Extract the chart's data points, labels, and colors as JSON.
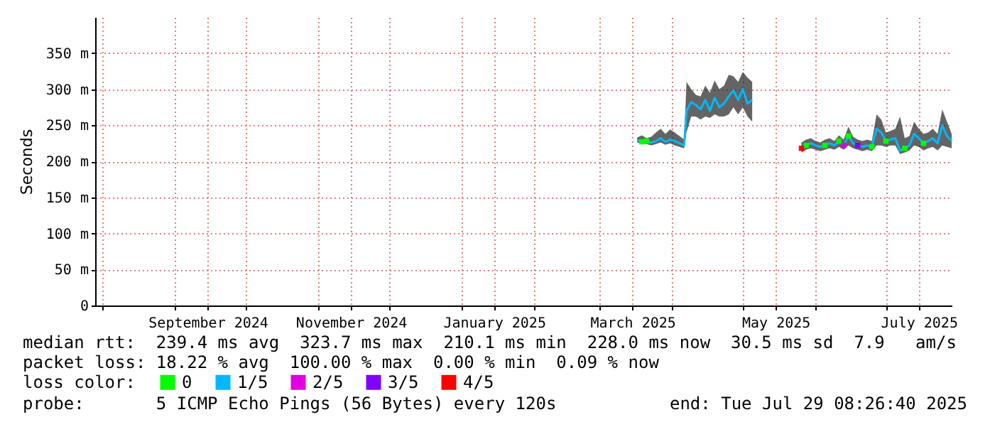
{
  "chart_data": {
    "type": "line",
    "ylabel": "Seconds",
    "legend_title": "loss color:",
    "legend": "bottom",
    "grid": true,
    "xlim": [
      "2024-07-29",
      "2025-07-29"
    ],
    "xticks": [
      {
        "value": "2024-08-01",
        "label": null
      },
      {
        "value": "2024-09-01",
        "label": null
      },
      {
        "value": "2024-09-15",
        "label": "September 2024"
      },
      {
        "value": "2024-10-01",
        "label": null
      },
      {
        "value": "2024-11-01",
        "label": null
      },
      {
        "value": "2024-11-15",
        "label": "November 2024"
      },
      {
        "value": "2024-12-01",
        "label": null
      },
      {
        "value": "2025-01-01",
        "label": null
      },
      {
        "value": "2025-01-15",
        "label": "January 2025"
      },
      {
        "value": "2025-02-01",
        "label": null
      },
      {
        "value": "2025-03-01",
        "label": null
      },
      {
        "value": "2025-03-15",
        "label": "March 2025"
      },
      {
        "value": "2025-04-01",
        "label": null
      },
      {
        "value": "2025-05-01",
        "label": null
      },
      {
        "value": "2025-05-15",
        "label": "May 2025"
      },
      {
        "value": "2025-06-01",
        "label": null
      },
      {
        "value": "2025-07-01",
        "label": null
      },
      {
        "value": "2025-07-15",
        "label": "July 2025"
      }
    ],
    "ylim": [
      0,
      400
    ],
    "yticks": [
      0,
      {
        "value": 50,
        "label": "50 m"
      },
      {
        "value": 100,
        "label": "100 m"
      },
      {
        "value": 150,
        "label": "150 m"
      },
      {
        "value": 200,
        "label": "200 m"
      },
      {
        "value": 250,
        "label": "250 m"
      },
      {
        "value": 300,
        "label": "300 m"
      },
      {
        "value": 350,
        "label": "350 m"
      }
    ],
    "annotations": [
      "median rtt:  239.4 ms avg  323.7 ms max  210.1 ms min  228.0 ms now  30.5 ms sd  7.9   am/s",
      "packet loss: 18.22 % avg  100.00 % max  0.00 % min  0.09 % now",
      "probe:       5 ICMP Echo Pings (56 Bytes) every 120s",
      "end: Tue Jul 29 08:26:40 2025"
    ],
    "series": [
      {
        "name": "0",
        "type": "scatter",
        "marker": "square",
        "color": "#00ff00",
        "x": [
          "2025-03-19",
          "2025-03-21",
          "2025-05-28",
          "2025-06-05",
          "2025-06-11",
          "2025-06-15",
          "2025-06-25",
          "2025-07-01",
          "2025-07-09",
          "2025-07-17"
        ],
        "values": [
          227,
          228,
          222,
          222,
          228,
          235,
          220,
          228,
          218,
          225
        ]
      },
      {
        "name": "1/5",
        "marker": "none",
        "line_style": "solid",
        "color": "#00b8ff",
        "x": [
          "2025-03-17",
          "2025-03-19",
          "2025-03-21",
          "2025-03-23",
          "2025-03-25",
          "2025-03-27",
          "2025-03-29",
          "2025-03-31",
          "2025-04-02",
          "2025-04-04",
          "2025-04-06",
          "2025-04-07",
          "2025-04-09",
          "2025-04-11",
          "2025-04-13",
          "2025-04-15",
          "2025-04-17",
          "2025-04-19",
          "2025-04-21",
          "2025-04-23",
          "2025-04-25",
          "2025-04-27",
          "2025-04-29",
          "2025-05-01",
          "2025-05-03",
          "2025-05-05",
          "2025-05-15",
          "2025-05-26",
          "2025-05-28",
          "2025-05-30",
          "2025-06-01",
          "2025-06-03",
          "2025-06-05",
          "2025-06-07",
          "2025-06-09",
          "2025-06-11",
          "2025-06-13",
          "2025-06-15",
          "2025-06-17",
          "2025-06-19",
          "2025-06-21",
          "2025-06-23",
          "2025-06-25",
          "2025-06-27",
          "2025-06-29",
          "2025-07-01",
          "2025-07-03",
          "2025-07-05",
          "2025-07-07",
          "2025-07-09",
          "2025-07-11",
          "2025-07-13",
          "2025-07-15",
          "2025-07-17",
          "2025-07-19",
          "2025-07-21",
          "2025-07-23",
          "2025-07-25",
          "2025-07-27",
          "2025-07-29"
        ],
        "values": [
          229,
          227,
          228,
          226,
          228,
          232,
          227,
          230,
          228,
          225,
          222,
          270,
          282,
          278,
          272,
          285,
          270,
          288,
          275,
          280,
          290,
          298,
          285,
          300,
          280,
          285,
          null,
          218,
          222,
          225,
          222,
          220,
          222,
          225,
          222,
          228,
          222,
          235,
          225,
          222,
          220,
          222,
          220,
          245,
          240,
          228,
          230,
          232,
          215,
          218,
          222,
          238,
          232,
          225,
          228,
          232,
          225,
          250,
          235,
          228
        ],
        "upper": [
          233,
          236,
          232,
          234,
          240,
          245,
          238,
          244,
          240,
          235,
          230,
          310,
          300,
          292,
          290,
          305,
          295,
          312,
          300,
          305,
          320,
          318,
          310,
          324,
          316,
          310,
          null,
          226,
          230,
          232,
          228,
          226,
          230,
          232,
          228,
          236,
          230,
          248,
          234,
          230,
          228,
          230,
          228,
          265,
          258,
          240,
          242,
          245,
          262,
          232,
          235,
          255,
          245,
          238,
          240,
          245,
          238,
          272,
          255,
          238
        ],
        "lower": [
          226,
          224,
          224,
          222,
          224,
          226,
          223,
          225,
          222,
          220,
          218,
          240,
          262,
          262,
          258,
          262,
          260,
          265,
          262,
          262,
          265,
          275,
          265,
          275,
          262,
          255,
          null,
          212,
          216,
          218,
          216,
          214,
          216,
          218,
          216,
          220,
          216,
          222,
          218,
          216,
          214,
          216,
          214,
          222,
          222,
          220,
          222,
          222,
          210,
          212,
          215,
          222,
          220,
          215,
          218,
          220,
          215,
          222,
          220,
          218
        ]
      },
      {
        "name": "2/5",
        "type": "scatter",
        "marker": "square",
        "color": "#e000e0",
        "x": [
          "2025-06-13"
        ],
        "values": [
          222
        ]
      },
      {
        "name": "3/5",
        "type": "scatter",
        "marker": "square",
        "color": "#7f00ff",
        "x": [
          "2025-06-19"
        ],
        "values": [
          222
        ]
      },
      {
        "name": "4/5",
        "type": "scatter",
        "marker": "square",
        "color": "#ff0000",
        "x": [
          "2025-05-26"
        ],
        "values": [
          218
        ]
      }
    ]
  }
}
